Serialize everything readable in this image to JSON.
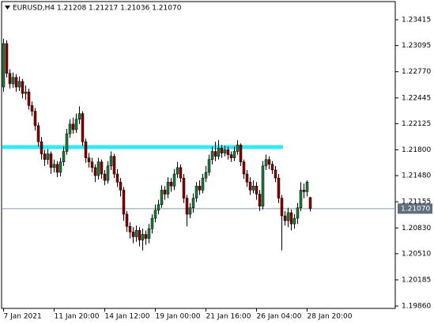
{
  "chart_data": {
    "type": "candlestick",
    "title": "EURUSD,H4  1.21208 1.21217 1.21036 1.21070",
    "open": [
      1.2258,
      1.2312,
      1.2275,
      1.2262,
      1.227,
      1.2258,
      1.2265,
      1.225,
      1.2252,
      1.2235,
      1.2228,
      1.221,
      1.219,
      1.2175,
      1.2168,
      1.2175,
      1.2158,
      1.2162,
      1.2152,
      1.2165,
      1.2178,
      1.22,
      1.2212,
      1.2205,
      1.2218,
      1.2225,
      1.219,
      1.217,
      1.2165,
      1.2158,
      1.2148,
      1.2165,
      1.215,
      1.2142,
      1.216,
      1.2172,
      1.215,
      1.214,
      1.213,
      1.21,
      1.2085,
      1.2078,
      1.2072,
      1.208,
      1.2068,
      1.2075,
      1.207,
      1.2082,
      1.2095,
      1.2105,
      1.2112,
      1.213,
      1.2125,
      1.214,
      1.2135,
      1.215,
      1.2158,
      1.2145,
      1.212,
      1.21,
      1.2108,
      1.212,
      1.2135,
      1.213,
      1.2145,
      1.2152,
      1.2168,
      1.2178,
      1.2172,
      1.2182,
      1.2176,
      1.218,
      1.2174,
      1.217,
      1.2178,
      1.2186,
      1.2165,
      1.215,
      1.214,
      1.213,
      1.2135,
      1.2125,
      1.211,
      1.216,
      1.2168,
      1.2162,
      1.2155,
      1.2145,
      1.212,
      1.2098,
      1.2092,
      1.2102,
      1.2088,
      1.2095,
      1.2108,
      1.213,
      1.2128,
      1.21208
    ],
    "high": [
      1.2318,
      1.2316,
      1.228,
      1.2276,
      1.2274,
      1.2271,
      1.2268,
      1.226,
      1.2256,
      1.224,
      1.2232,
      1.2214,
      1.2196,
      1.218,
      1.2181,
      1.2178,
      1.2168,
      1.2166,
      1.217,
      1.2184,
      1.2206,
      1.2218,
      1.222,
      1.2225,
      1.2234,
      1.2228,
      1.2194,
      1.2176,
      1.217,
      1.2162,
      1.217,
      1.2168,
      1.2155,
      1.2166,
      1.2178,
      1.2175,
      1.2156,
      1.2145,
      1.2134,
      1.2104,
      1.209,
      1.2084,
      1.2086,
      1.2084,
      1.2082,
      1.208,
      1.2088,
      1.21,
      1.2112,
      1.2118,
      1.2136,
      1.2135,
      1.2146,
      1.2145,
      1.2156,
      1.2165,
      1.2162,
      1.215,
      1.2124,
      1.2114,
      1.2126,
      1.214,
      1.2142,
      1.215,
      1.216,
      1.2174,
      1.2184,
      1.219,
      1.2192,
      1.2186,
      1.2185,
      1.2184,
      1.2178,
      1.2184,
      1.2192,
      1.2188,
      1.2168,
      1.2155,
      1.2146,
      1.2142,
      1.214,
      1.213,
      1.2166,
      1.2174,
      1.2172,
      1.2166,
      1.216,
      1.215,
      1.2124,
      1.2104,
      1.2108,
      1.2106,
      1.21,
      1.2114,
      1.214,
      1.2138,
      1.2142,
      1.21217
    ],
    "low": [
      1.2252,
      1.227,
      1.2256,
      1.2257,
      1.2252,
      1.2253,
      1.2244,
      1.2242,
      1.223,
      1.2222,
      1.2204,
      1.2184,
      1.2168,
      1.216,
      1.2162,
      1.215,
      1.2152,
      1.2146,
      1.2147,
      1.216,
      1.2174,
      1.2195,
      1.22,
      1.2201,
      1.2212,
      1.2185,
      1.2164,
      1.2158,
      1.2152,
      1.214,
      1.2143,
      1.2144,
      1.2136,
      1.2138,
      1.2155,
      1.2145,
      1.2134,
      1.2122,
      1.2092,
      1.2078,
      1.207,
      1.2064,
      1.2066,
      1.206,
      1.2055,
      1.2062,
      1.2064,
      1.2076,
      1.209,
      1.21,
      1.2108,
      1.2118,
      1.212,
      1.2128,
      1.213,
      1.2145,
      1.214,
      1.2114,
      1.2085,
      1.2095,
      1.2102,
      1.2115,
      1.2124,
      1.2126,
      1.214,
      1.2148,
      1.2162,
      1.2166,
      1.2168,
      1.217,
      1.2172,
      1.2168,
      1.2165,
      1.2166,
      1.2174,
      1.216,
      1.2144,
      1.2134,
      1.2124,
      1.2126,
      1.2118,
      1.2104,
      1.2106,
      1.2155,
      1.2156,
      1.215,
      1.214,
      1.2114,
      1.2055,
      1.2086,
      1.2084,
      1.208,
      1.2082,
      1.2088,
      1.2104,
      1.212,
      1.2122,
      1.21036
    ],
    "close": [
      1.2312,
      1.2275,
      1.2262,
      1.227,
      1.2258,
      1.2265,
      1.225,
      1.2252,
      1.2235,
      1.2228,
      1.221,
      1.219,
      1.2175,
      1.2168,
      1.2175,
      1.2158,
      1.2162,
      1.2152,
      1.2165,
      1.2178,
      1.22,
      1.2212,
      1.2205,
      1.2218,
      1.2225,
      1.219,
      1.217,
      1.2165,
      1.2158,
      1.2148,
      1.2165,
      1.215,
      1.2142,
      1.216,
      1.2172,
      1.215,
      1.214,
      1.213,
      1.21,
      1.2085,
      1.2078,
      1.2072,
      1.208,
      1.2068,
      1.2075,
      1.207,
      1.2082,
      1.2095,
      1.2105,
      1.2112,
      1.213,
      1.2125,
      1.214,
      1.2135,
      1.215,
      1.2158,
      1.2145,
      1.212,
      1.21,
      1.2108,
      1.212,
      1.2135,
      1.213,
      1.2145,
      1.2152,
      1.2168,
      1.2178,
      1.2172,
      1.2182,
      1.2176,
      1.218,
      1.2174,
      1.217,
      1.2178,
      1.2186,
      1.2165,
      1.215,
      1.214,
      1.213,
      1.2135,
      1.2125,
      1.211,
      1.216,
      1.2168,
      1.2162,
      1.2155,
      1.2145,
      1.212,
      1.2098,
      1.2092,
      1.2102,
      1.2088,
      1.2095,
      1.2108,
      1.213,
      1.2128,
      1.214,
      1.2107
    ],
    "bull_color": "#1f7a3a",
    "bear_color": "#8b0000",
    "ylim": [
      1.19831,
      1.23641
    ],
    "yticks": [
      1.23415,
      1.23095,
      {
        "value": 1.2277,
        "label": "1.22770"
      },
      1.22445,
      1.22125,
      {
        "value": 1.218,
        "label": "1.21800"
      },
      {
        "value": 1.2148,
        "label": "1.21480"
      },
      1.21155,
      {
        "value": 1.2083,
        "label": "1.20830"
      },
      {
        "value": 1.2051,
        "label": "1.20510"
      },
      1.20185,
      {
        "value": 1.1986,
        "label": "1.19860"
      }
    ],
    "xticks": [
      {
        "value": 0,
        "label": "7 Jan 2021"
      },
      {
        "value": 16,
        "label": "11 Jan 20:00"
      },
      {
        "value": 32,
        "label": "14 Jan 12:00"
      },
      {
        "value": 48,
        "label": "19 Jan 00:00"
      },
      {
        "value": 64,
        "label": "21 Jan 16:00"
      },
      {
        "value": 80,
        "label": "26 Jan 04:00"
      },
      {
        "value": 96,
        "label": "28 Jan 20:00"
      }
    ],
    "price_line": {
      "value": 1.2107,
      "label": "1.21070",
      "color": "#7f9aaa"
    },
    "horizontal_line": {
      "value": 1.21834,
      "color": "#33eaf4"
    }
  }
}
